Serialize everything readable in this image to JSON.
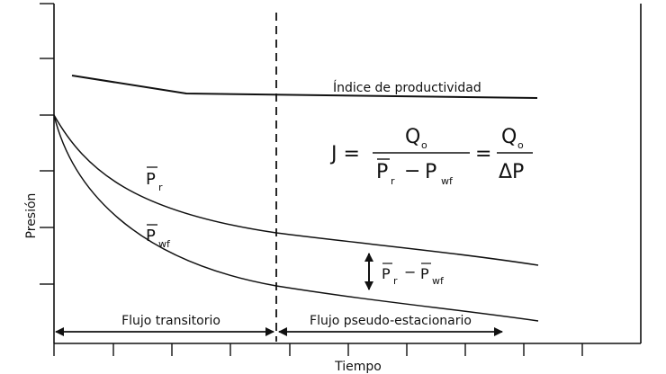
{
  "axes": {
    "xlabel": "Tiempo",
    "ylabel": "Presión"
  },
  "curves": {
    "productivity_label": "Índice de productividad",
    "pr_label": "P",
    "pr_sub": "r",
    "pwf_label": "P",
    "pwf_sub": "wf"
  },
  "difference_label": {
    "p1": "P",
    "p1_sub": "r",
    "minus": "−",
    "p2": "P",
    "p2_sub": "wf"
  },
  "formula": {
    "lhs": "J =",
    "num": "Q",
    "num_sub": "o",
    "den_p1": "P",
    "den_p1_sub": "r",
    "den_minus": "−",
    "den_p2": "P",
    "den_p2_sub": "wf",
    "eq": "=",
    "num2": "Q",
    "num2_sub": "o",
    "den2": "ΔP"
  },
  "regions": {
    "transient": "Flujo transitorio",
    "pseudo": "Flujo pseudo-estacionario"
  },
  "colors": {
    "line": "#111111",
    "background": "#ffffff"
  }
}
